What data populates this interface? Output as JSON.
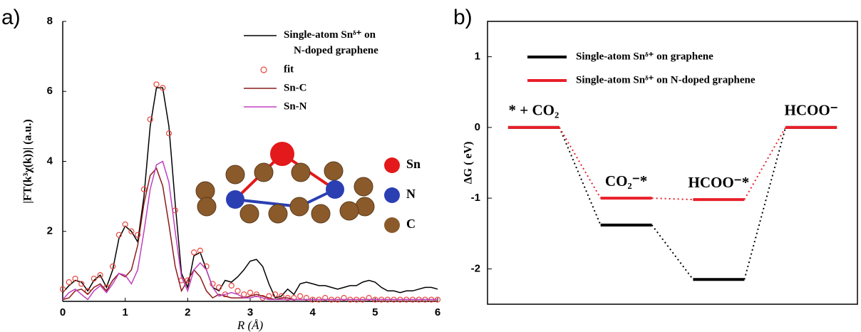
{
  "panel_labels": [
    "a)",
    "b)"
  ],
  "inset_legend": [
    {
      "label": "Sn",
      "color": "#e3191b"
    },
    {
      "label": "N",
      "color": "#2b3fb3"
    },
    {
      "label": "C",
      "color": "#8b5a2b"
    }
  ],
  "chart_data": [
    {
      "type": "line",
      "x_label": "R (Å)",
      "y_label": "|FT(k³χ(k))| (a.u.)",
      "xlim": [
        0,
        6
      ],
      "ylim": [
        0,
        8
      ],
      "xticks": [
        0,
        1,
        2,
        3,
        4,
        5,
        6
      ],
      "yticks": [
        2,
        4,
        6,
        8
      ],
      "legend": "upper right",
      "x": [
        0,
        0.1,
        0.2,
        0.3,
        0.4,
        0.5,
        0.6,
        0.7,
        0.8,
        0.9,
        1,
        1.1,
        1.2,
        1.3,
        1.4,
        1.5,
        1.6,
        1.7,
        1.8,
        1.9,
        2,
        2.1,
        2.2,
        2.3,
        2.4,
        2.5,
        2.6,
        2.7,
        2.8,
        2.9,
        3,
        3.1,
        3.2,
        3.3,
        3.4,
        3.5,
        3.6,
        3.7,
        3.8,
        3.9,
        4,
        4.1,
        4.2,
        4.3,
        4.4,
        4.5,
        4.6,
        4.7,
        4.8,
        4.9,
        5,
        5.1,
        5.2,
        5.3,
        5.4,
        5.5,
        5.6,
        5.7,
        5.8,
        5.9,
        6
      ],
      "series": [
        {
          "name": "Single-atom Snᵟ⁺ on N-doped graphene",
          "color": "#000000",
          "mode": "line",
          "values": [
            0.25,
            0.45,
            0.6,
            0.55,
            0.3,
            0.6,
            0.75,
            0.4,
            0.9,
            1.8,
            2.15,
            2.0,
            1.7,
            3.0,
            5.0,
            6.1,
            6.1,
            5.0,
            2.8,
            0.8,
            0.4,
            1.3,
            1.4,
            0.9,
            0.4,
            0.3,
            0.6,
            0.55,
            0.7,
            0.9,
            1.15,
            1.2,
            1.0,
            0.5,
            0.1,
            0.15,
            0.35,
            0.2,
            0.5,
            0.55,
            0.5,
            0.45,
            0.45,
            0.4,
            0.35,
            0.4,
            0.45,
            0.45,
            0.55,
            0.6,
            0.55,
            0.4,
            0.3,
            0.3,
            0.25,
            0.3,
            0.3,
            0.35,
            0.4,
            0.4,
            0.35
          ]
        },
        {
          "name": "fit",
          "color": "#e8453c",
          "mode": "markers",
          "values": [
            0.35,
            0.55,
            0.65,
            0.5,
            0.3,
            0.65,
            0.75,
            0.4,
            1.0,
            1.9,
            2.2,
            2.0,
            1.9,
            3.2,
            5.2,
            6.2,
            6.1,
            4.8,
            2.6,
            0.6,
            0.6,
            1.4,
            1.45,
            1.0,
            0.5,
            0.4,
            0.2,
            0.45,
            0.3,
            0.2,
            0.25,
            0.2,
            0.1,
            0.15,
            0.2,
            0.15,
            0.1,
            0.1,
            0.15,
            0.1,
            0.05,
            0.05,
            0.1,
            0.05,
            0.05,
            0.1,
            0.05,
            0.05,
            0.05,
            0.1,
            0.05,
            0.05,
            0.05,
            0.05,
            0.05,
            0.05,
            0.05,
            0.05,
            0.05,
            0.05,
            0.05
          ]
        },
        {
          "name": "Sn-C",
          "color": "#8b1a1a",
          "mode": "line",
          "values": [
            0.05,
            0.1,
            0.3,
            0.35,
            0.2,
            0.4,
            0.5,
            0.3,
            0.6,
            0.8,
            0.7,
            0.9,
            1.6,
            2.8,
            3.6,
            3.8,
            3.3,
            2.2,
            1.0,
            0.3,
            0.6,
            0.9,
            0.7,
            0.3,
            0.1,
            0.2,
            0.15,
            0.1,
            0.1,
            0.1,
            0.15,
            0.2,
            0.15,
            0.1,
            0.05,
            0.1,
            0.1,
            0.05,
            0.05,
            0.05,
            0.05,
            0.05,
            0.05,
            0.05,
            0.05,
            0.05,
            0.05,
            0.05,
            0.05,
            0.05,
            0.05,
            0.05,
            0.05,
            0.05,
            0.05,
            0.05,
            0.05,
            0.05,
            0.05,
            0.05,
            0.05
          ]
        },
        {
          "name": "Sn-N",
          "color": "#c040c0",
          "mode": "line",
          "values": [
            0.05,
            0.25,
            0.35,
            0.2,
            0.05,
            0.3,
            0.45,
            0.25,
            0.5,
            0.8,
            0.75,
            0.5,
            0.9,
            2.0,
            3.2,
            3.9,
            4.0,
            3.4,
            2.0,
            0.7,
            0.3,
            0.9,
            1.1,
            0.9,
            0.4,
            0.15,
            0.2,
            0.25,
            0.2,
            0.1,
            0.1,
            0.15,
            0.1,
            0.05,
            0.05,
            0.05,
            0.05,
            0.05,
            0.05,
            0.05,
            0.05,
            0.05,
            0.05,
            0.05,
            0.05,
            0.05,
            0.05,
            0.05,
            0.05,
            0.05,
            0.05,
            0.05,
            0.05,
            0.05,
            0.05,
            0.05,
            0.05,
            0.05,
            0.05,
            0.05,
            0.05
          ]
        }
      ]
    },
    {
      "type": "energy_levels",
      "y_label": "ΔG ( eV)",
      "ylim": [
        -2.5,
        1.5
      ],
      "yticks": [
        -2,
        -1,
        0,
        1
      ],
      "legend": "upper right",
      "categories": [
        "* + CO₂",
        "CO₂⁻*",
        "HCOO⁻*",
        "HCOO⁻"
      ],
      "series": [
        {
          "name": "Single-atom Snᵟ⁺ on graphene",
          "color": "#000000",
          "values": [
            0,
            -1.38,
            -2.15,
            0
          ]
        },
        {
          "name": "Single-atom Snᵟ⁺ on N-doped graphene",
          "color": "#e8202a",
          "values": [
            0,
            -1.0,
            -1.02,
            0
          ]
        }
      ]
    }
  ]
}
